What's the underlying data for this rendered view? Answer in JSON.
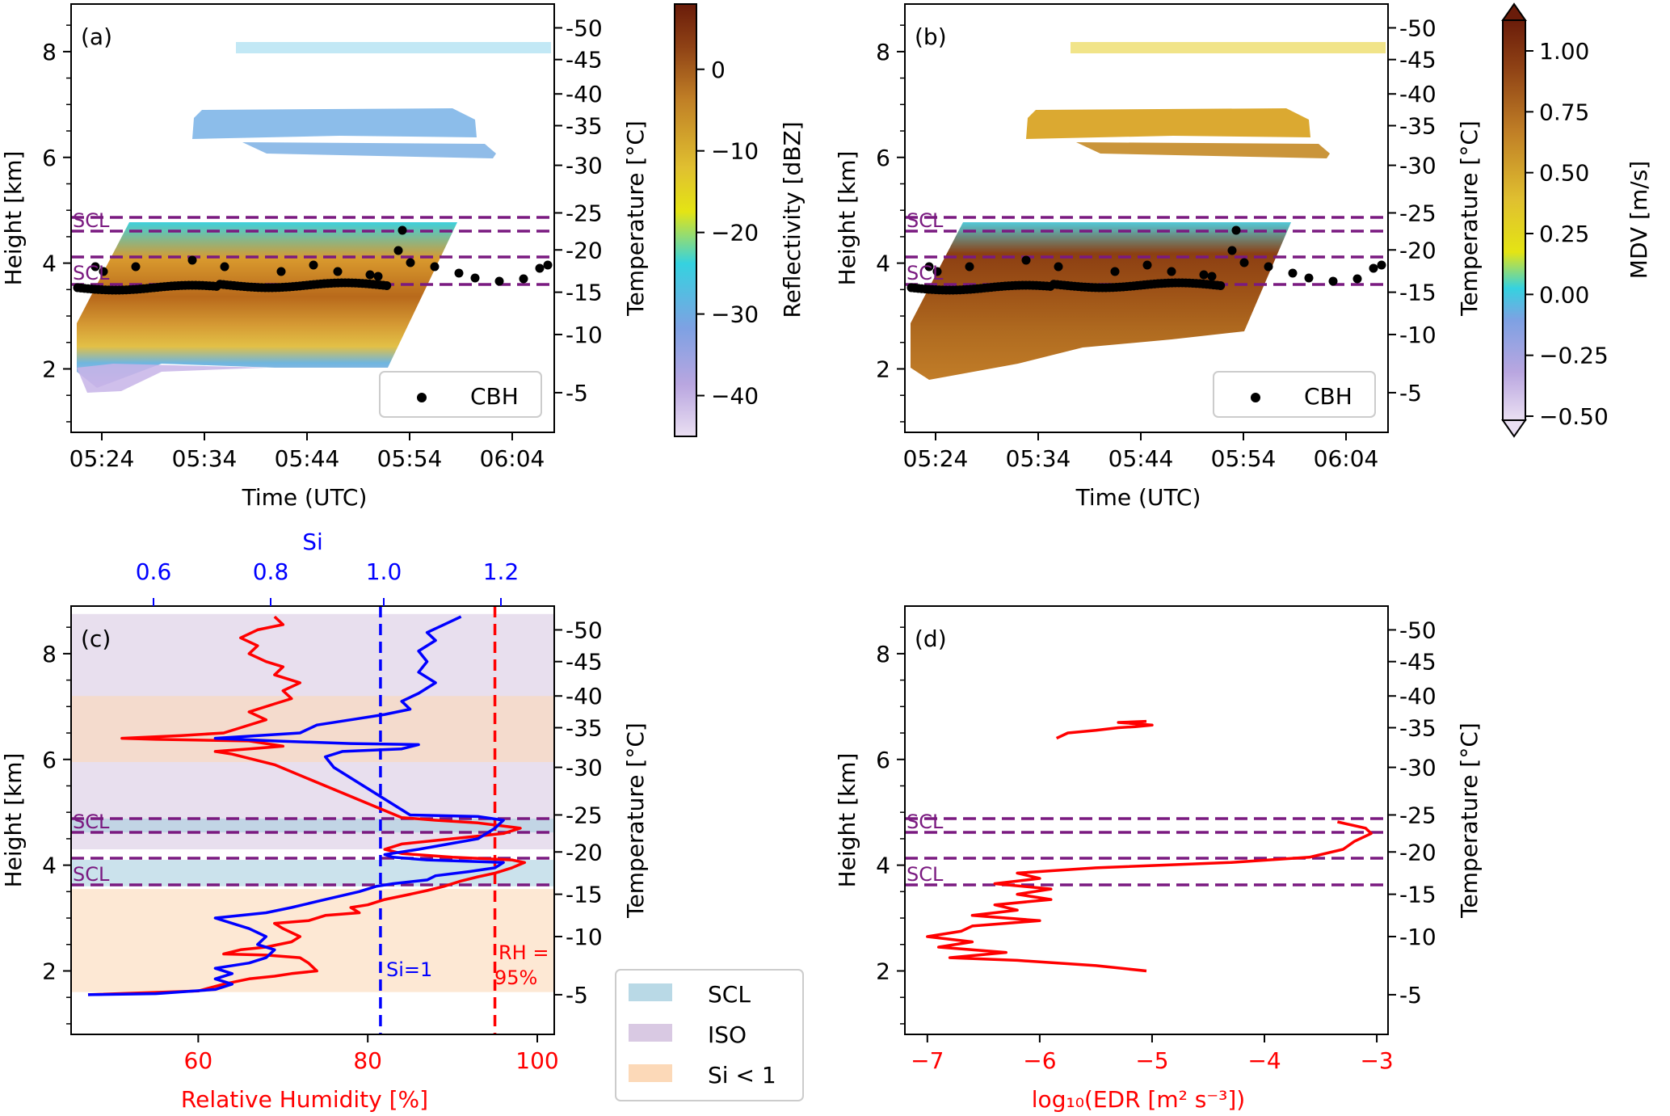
{
  "figure": {
    "panels": [
      {
        "id": "a",
        "label": "(a)"
      },
      {
        "id": "b",
        "label": "(b)"
      },
      {
        "id": "c",
        "label": "(c)"
      },
      {
        "id": "d",
        "label": "(d)"
      }
    ]
  },
  "chart_data": [
    {
      "panel": "(a)",
      "type": "heatmap",
      "xlabel": "Time (UTC)",
      "ylabel": "Height [km]",
      "y2label": "Temperature [°C]",
      "x_ticks": [
        "05:24",
        "05:34",
        "05:44",
        "05:54",
        "06:04"
      ],
      "y_ticks": [
        2,
        4,
        6,
        8
      ],
      "ylim": [
        0.8,
        8.9
      ],
      "temperature_ticks": [
        {
          "label": "-50",
          "height": 8.45
        },
        {
          "label": "-45",
          "height": 7.85
        },
        {
          "label": "-40",
          "height": 7.2
        },
        {
          "label": "-35",
          "height": 6.6
        },
        {
          "label": "-30",
          "height": 5.85
        },
        {
          "label": "-25",
          "height": 4.95
        },
        {
          "label": "-20",
          "height": 4.25
        },
        {
          "label": "-15",
          "height": 3.45
        },
        {
          "label": "-10",
          "height": 2.65
        },
        {
          "label": "-5",
          "height": 1.55
        }
      ],
      "scl_lines_height_km": [
        4.88,
        4.62,
        4.1,
        3.6
      ],
      "scl_labels": [
        "SCL",
        "SCL"
      ],
      "colorbar": {
        "label": "Reflectivity [dBZ]",
        "ticks": [
          0,
          -10,
          -20,
          -30,
          -40
        ],
        "range": [
          -45,
          8
        ]
      },
      "legend": {
        "entries": [
          "CBH"
        ],
        "placement": "lower-right"
      }
    },
    {
      "panel": "(b)",
      "type": "heatmap",
      "xlabel": "Time (UTC)",
      "ylabel": "Height [km]",
      "y2label": "Temperature [°C]",
      "x_ticks": [
        "05:24",
        "05:34",
        "05:44",
        "05:54",
        "06:04"
      ],
      "y_ticks": [
        2,
        4,
        6,
        8
      ],
      "scl_lines_height_km": [
        4.88,
        4.62,
        4.1,
        3.6
      ],
      "scl_labels": [
        "SCL",
        "SCL"
      ],
      "colorbar": {
        "label": "MDV [m/s]",
        "ticks": [
          "1.00",
          "0.75",
          "0.50",
          "0.25",
          "0.00",
          "−0.25",
          "−0.50"
        ],
        "range": [
          -0.5,
          1.0
        ]
      },
      "legend": {
        "entries": [
          "CBH"
        ],
        "placement": "lower-right"
      }
    },
    {
      "panel": "(c)",
      "type": "line",
      "xlabel": "Relative Humidity [%]",
      "x2label": "Si",
      "ylabel": "Height [km]",
      "y2label": "Temperature [°C]",
      "xlim": [
        45,
        102
      ],
      "x_ticks": [
        60,
        80,
        100
      ],
      "si_ticks": [
        "0.6",
        "0.8",
        "1.0",
        "1.2"
      ],
      "y_ticks": [
        2,
        4,
        6,
        8
      ],
      "ylim": [
        0.8,
        8.9
      ],
      "reference_lines": [
        {
          "name": "Si=1",
          "rh": 81.5
        },
        {
          "name": "RH = 95%",
          "rh": 95
        }
      ],
      "series": [
        {
          "name": "Relative Humidity",
          "points": [
            [
              47,
              1.55
            ],
            [
              60,
              1.62
            ],
            [
              63,
              1.75
            ],
            [
              66,
              1.85
            ],
            [
              69,
              1.9
            ],
            [
              71,
              1.95
            ],
            [
              74,
              2.0
            ],
            [
              73,
              2.15
            ],
            [
              72,
              2.25
            ],
            [
              68,
              2.3
            ],
            [
              63,
              2.32
            ],
            [
              65,
              2.4
            ],
            [
              68,
              2.45
            ],
            [
              71,
              2.55
            ],
            [
              72,
              2.65
            ],
            [
              70,
              2.8
            ],
            [
              69,
              2.9
            ],
            [
              73,
              2.95
            ],
            [
              75,
              3.05
            ],
            [
              79,
              3.1
            ],
            [
              78,
              3.2
            ],
            [
              80,
              3.25
            ],
            [
              82,
              3.35
            ],
            [
              85,
              3.45
            ],
            [
              87,
              3.52
            ],
            [
              89,
              3.6
            ],
            [
              91,
              3.7
            ],
            [
              93,
              3.78
            ],
            [
              95,
              3.85
            ],
            [
              97,
              3.95
            ],
            [
              98.5,
              4.05
            ],
            [
              97,
              4.1
            ],
            [
              90,
              4.15
            ],
            [
              84,
              4.22
            ],
            [
              82,
              4.3
            ],
            [
              84,
              4.4
            ],
            [
              90,
              4.5
            ],
            [
              96,
              4.6
            ],
            [
              98,
              4.7
            ],
            [
              93,
              4.8
            ],
            [
              88,
              4.85
            ],
            [
              84,
              4.9
            ],
            [
              69,
              5.9
            ],
            [
              64,
              6.1
            ],
            [
              62,
              6.15
            ],
            [
              66,
              6.2
            ],
            [
              70,
              6.25
            ],
            [
              68,
              6.3
            ],
            [
              66,
              6.35
            ],
            [
              55,
              6.38
            ],
            [
              51,
              6.4
            ],
            [
              58,
              6.45
            ],
            [
              63,
              6.5
            ],
            [
              65,
              6.6
            ],
            [
              68,
              6.75
            ],
            [
              66,
              6.9
            ],
            [
              69,
              7.05
            ],
            [
              71,
              7.15
            ],
            [
              70,
              7.3
            ],
            [
              72,
              7.45
            ],
            [
              69,
              7.6
            ],
            [
              70,
              7.75
            ],
            [
              68,
              7.85
            ],
            [
              66,
              8.0
            ],
            [
              67,
              8.15
            ],
            [
              65,
              8.3
            ],
            [
              67,
              8.45
            ],
            [
              70,
              8.55
            ],
            [
              69,
              8.7
            ]
          ]
        },
        {
          "name": "Si",
          "points": [
            [
              47,
              1.55
            ],
            [
              55,
              1.57
            ],
            [
              62,
              1.65
            ],
            [
              64,
              1.75
            ],
            [
              62,
              1.85
            ],
            [
              64,
              1.95
            ],
            [
              62,
              2.05
            ],
            [
              66,
              2.15
            ],
            [
              68,
              2.25
            ],
            [
              69,
              2.4
            ],
            [
              67,
              2.5
            ],
            [
              68,
              2.65
            ],
            [
              66,
              2.8
            ],
            [
              62,
              3.0
            ],
            [
              68,
              3.1
            ],
            [
              71,
              3.2
            ],
            [
              75,
              3.35
            ],
            [
              79,
              3.5
            ],
            [
              81,
              3.6
            ],
            [
              83,
              3.65
            ],
            [
              87,
              3.72
            ],
            [
              88,
              3.8
            ],
            [
              92,
              3.88
            ],
            [
              95,
              3.95
            ],
            [
              96,
              4.05
            ],
            [
              87,
              4.1
            ],
            [
              83,
              4.15
            ],
            [
              82,
              4.2
            ],
            [
              86,
              4.3
            ],
            [
              93,
              4.5
            ],
            [
              95,
              4.7
            ],
            [
              96,
              4.85
            ],
            [
              93,
              4.92
            ],
            [
              85,
              4.95
            ],
            [
              76,
              5.85
            ],
            [
              75,
              6.05
            ],
            [
              77,
              6.15
            ],
            [
              84,
              6.2
            ],
            [
              86,
              6.28
            ],
            [
              78,
              6.3
            ],
            [
              69,
              6.35
            ],
            [
              62,
              6.4
            ],
            [
              72,
              6.5
            ],
            [
              74,
              6.65
            ],
            [
              78,
              6.75
            ],
            [
              82,
              6.85
            ],
            [
              85,
              6.95
            ],
            [
              84,
              7.1
            ],
            [
              86,
              7.25
            ],
            [
              88,
              7.45
            ],
            [
              86,
              7.65
            ],
            [
              87,
              7.85
            ],
            [
              86,
              8.05
            ],
            [
              88,
              8.25
            ],
            [
              87,
              8.4
            ],
            [
              89,
              8.55
            ],
            [
              91,
              8.7
            ]
          ]
        }
      ],
      "shaded_regions": [
        {
          "name": "ISO",
          "from_km": 4.3,
          "to_km": 8.75
        },
        {
          "name": "SCL",
          "from_km": 3.6,
          "to_km": 4.1
        },
        {
          "name": "SCL",
          "from_km": 4.62,
          "to_km": 4.88
        },
        {
          "name": "Si < 1",
          "from_km": 1.6,
          "to_km": 3.55
        },
        {
          "name": "Si < 1",
          "from_km": 5.95,
          "to_km": 7.2
        }
      ],
      "legend": {
        "entries": [
          "SCL",
          "ISO",
          "Si < 1"
        ],
        "placement": "outside-right"
      },
      "colors": {
        "rh": "#ff0000",
        "si": "#0000ff",
        "scl": "#a8cfe0",
        "iso": "#d9c9e3",
        "si_lt_1": "#fcd9b8"
      }
    },
    {
      "panel": "(d)",
      "type": "line",
      "xlabel": "log₁₀(EDR [m² s⁻³])",
      "ylabel": "Height [km]",
      "y2label": "Temperature [°C]",
      "xlim": [
        -7.2,
        -2.9
      ],
      "x_ticks": [
        "−7",
        "−6",
        "−5",
        "−4",
        "−3"
      ],
      "y_ticks": [
        2,
        4,
        6,
        8
      ],
      "series": [
        {
          "name": "EDR upper",
          "points": [
            [
              -5.85,
              6.4
            ],
            [
              -5.75,
              6.5
            ],
            [
              -5.5,
              6.55
            ],
            [
              -5.3,
              6.6
            ],
            [
              -5.15,
              6.62
            ],
            [
              -5.0,
              6.65
            ],
            [
              -5.3,
              6.7
            ],
            [
              -5.05,
              6.72
            ]
          ]
        },
        {
          "name": "EDR lower",
          "points": [
            [
              -5.05,
              2.0
            ],
            [
              -5.5,
              2.1
            ],
            [
              -6.2,
              2.2
            ],
            [
              -6.8,
              2.25
            ],
            [
              -6.3,
              2.35
            ],
            [
              -6.9,
              2.45
            ],
            [
              -6.6,
              2.55
            ],
            [
              -7.0,
              2.65
            ],
            [
              -6.7,
              2.75
            ],
            [
              -6.6,
              2.85
            ],
            [
              -6.0,
              2.95
            ],
            [
              -6.6,
              3.05
            ],
            [
              -6.2,
              3.15
            ],
            [
              -6.4,
              3.25
            ],
            [
              -5.9,
              3.35
            ],
            [
              -6.2,
              3.45
            ],
            [
              -5.9,
              3.55
            ],
            [
              -6.4,
              3.65
            ],
            [
              -6.0,
              3.75
            ],
            [
              -6.2,
              3.85
            ],
            [
              -5.5,
              3.95
            ],
            [
              -4.3,
              4.05
            ],
            [
              -3.6,
              4.15
            ],
            [
              -3.3,
              4.3
            ],
            [
              -3.2,
              4.45
            ],
            [
              -3.05,
              4.6
            ],
            [
              -3.1,
              4.7
            ],
            [
              -3.35,
              4.82
            ]
          ]
        }
      ],
      "scl_lines_height_km": [
        4.88,
        4.62,
        4.1,
        3.6
      ],
      "scl_labels": [
        "SCL",
        "SCL"
      ],
      "colors": {
        "edr": "#ff0000"
      }
    }
  ],
  "text": {
    "time_axis": "Time (UTC)",
    "height_axis": "Height [km]",
    "temp_axis": "Temperature [°C]",
    "refl_label": "Reflectivity [dBZ]",
    "mdv_label": "MDV [m/s]",
    "rh_axis": "Relative Humidity [%]",
    "si_axis": "Si",
    "edr_axis": "log₁₀(EDR [m² s⁻³])",
    "cbh": "CBH",
    "si1": "Si=1",
    "rh95_a": "RH =",
    "rh95_b": "95%",
    "scl": "SCL",
    "legend_scl": "SCL",
    "legend_iso": "ISO",
    "legend_si": "Si < 1"
  }
}
